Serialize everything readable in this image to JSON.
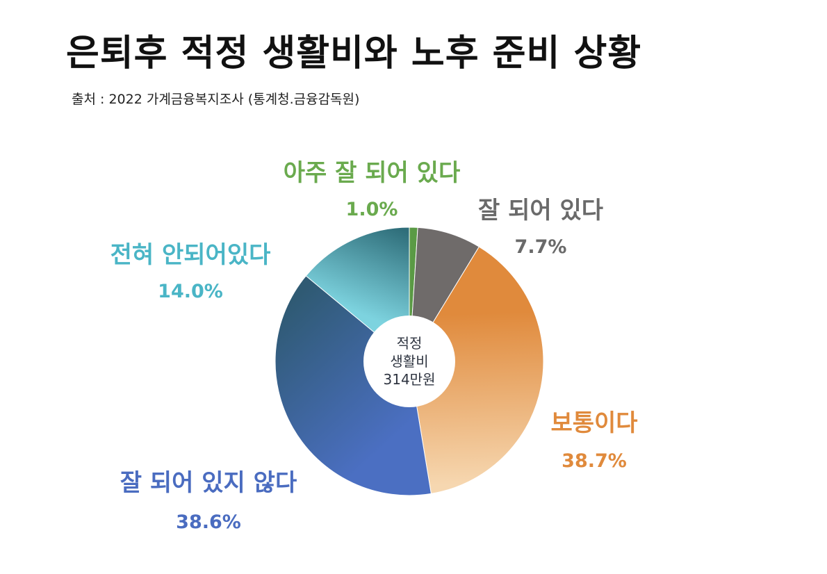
{
  "title": "은퇴후 적정 생활비와 노후 준비 상황",
  "source": "출처 : 2022 가계금융복지조사 (통계청.금융감독원)",
  "chart_data": {
    "type": "pie",
    "variant": "donut",
    "center_label": [
      "적정",
      "생활비",
      "314만원"
    ],
    "slices": [
      {
        "label": "아주 잘 되어 있다",
        "value": 1.0,
        "value_label": "1.0%",
        "color": "#5a9a45",
        "gradient": [
          "#5a9a45",
          "#5a9a45"
        ],
        "text_color": "#6aaa4e"
      },
      {
        "label": "잘 되어 있다",
        "value": 7.7,
        "value_label": "7.7%",
        "color": "#6f6b6a",
        "gradient": [
          "#6f6b6a",
          "#6f6b6a"
        ],
        "text_color": "#6a6a6a"
      },
      {
        "label": "보통이다",
        "value": 38.7,
        "value_label": "38.7%",
        "color": "#e4954a",
        "gradient": [
          "#e08a3c",
          "#f6d7b0"
        ],
        "text_color": "#e08a3c"
      },
      {
        "label": "잘 되어 있지 않다",
        "value": 38.6,
        "value_label": "38.6%",
        "color": "#4f74bd",
        "gradient": [
          "#4b6fc2",
          "#2f5a73"
        ],
        "text_color": "#4a6cc0"
      },
      {
        "label": "전혀 안되어있다",
        "value": 14.0,
        "value_label": "14.0%",
        "color": "#5ec0ce",
        "gradient": [
          "#7dd3df",
          "#2f6e7a"
        ],
        "text_color": "#4ab5c6"
      }
    ],
    "start_angle_deg": 0,
    "direction": "clockwise"
  }
}
